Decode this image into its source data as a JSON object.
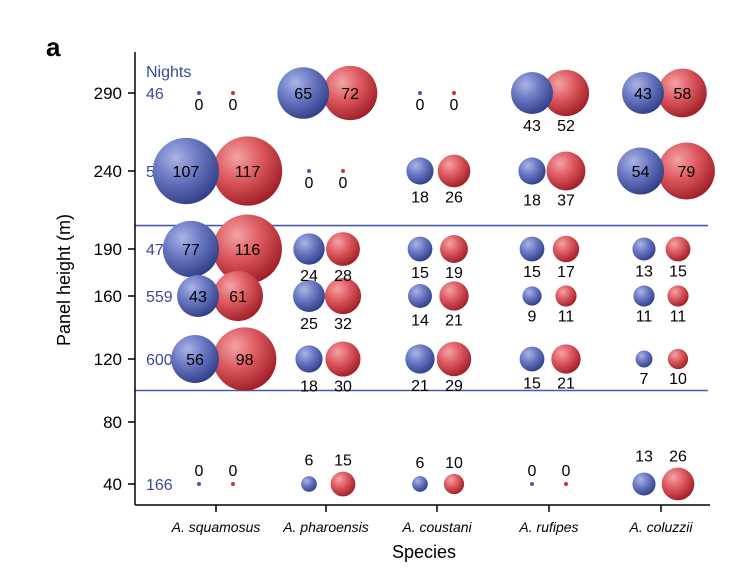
{
  "panel_label": "a",
  "chart_data": {
    "type": "scatter",
    "xlabel": "Species",
    "ylabel": "Panel height (m)",
    "categories": [
      "A. squamosus",
      "A. pharoensis",
      "A. coustani",
      "A. rufipes",
      "A. coluzzii"
    ],
    "y_ticks": [
      40,
      80,
      120,
      160,
      190,
      240,
      290
    ],
    "nights_header": "Nights",
    "rows": [
      {
        "height": 290,
        "nights": "46",
        "blue": [
          0,
          65,
          0,
          43,
          43
        ],
        "red": [
          0,
          72,
          0,
          52,
          58
        ]
      },
      {
        "height": 240,
        "nights": "53",
        "blue": [
          107,
          0,
          18,
          18,
          54
        ],
        "red": [
          117,
          0,
          26,
          37,
          79
        ]
      },
      {
        "height": 190,
        "nights": "470",
        "blue": [
          77,
          24,
          15,
          15,
          13
        ],
        "red": [
          116,
          28,
          19,
          17,
          15
        ]
      },
      {
        "height": 160,
        "nights": "559",
        "blue": [
          43,
          25,
          14,
          9,
          11
        ],
        "red": [
          61,
          32,
          21,
          11,
          11
        ]
      },
      {
        "height": 120,
        "nights": "600",
        "blue": [
          56,
          18,
          21,
          15,
          7
        ],
        "red": [
          98,
          30,
          29,
          21,
          10
        ]
      },
      {
        "height": 40,
        "nights": "166",
        "blue": [
          0,
          6,
          6,
          0,
          13
        ],
        "red": [
          0,
          15,
          10,
          0,
          26
        ]
      }
    ],
    "reference_lines_y": [
      100,
      205
    ],
    "colors": {
      "blue": "#4a5aa8",
      "red": "#c8323a",
      "nights_text": "#3a4a9c",
      "reference_line": "#4a5aa8"
    }
  }
}
